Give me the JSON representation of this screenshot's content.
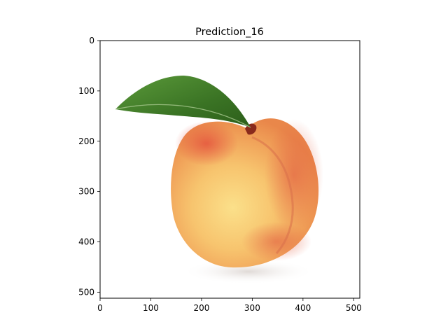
{
  "figure": {
    "background": "#ffffff"
  },
  "chart_data": {
    "type": "image",
    "title": "Prediction_16",
    "xlabel": "",
    "ylabel": "",
    "xlim": [
      0,
      512
    ],
    "ylim": [
      512,
      0
    ],
    "x_ticks": [
      0,
      100,
      200,
      300,
      400,
      500
    ],
    "y_ticks": [
      0,
      100,
      200,
      300,
      400,
      500
    ],
    "grid": false,
    "legend": false,
    "image_subject": "peach with green leaf on white background",
    "colors": {
      "peach_light": "#f9d27a",
      "peach_mid": "#f3a657",
      "peach_blush": "#e4593e",
      "leaf": "#3d7a26",
      "axis": "#000000"
    }
  }
}
